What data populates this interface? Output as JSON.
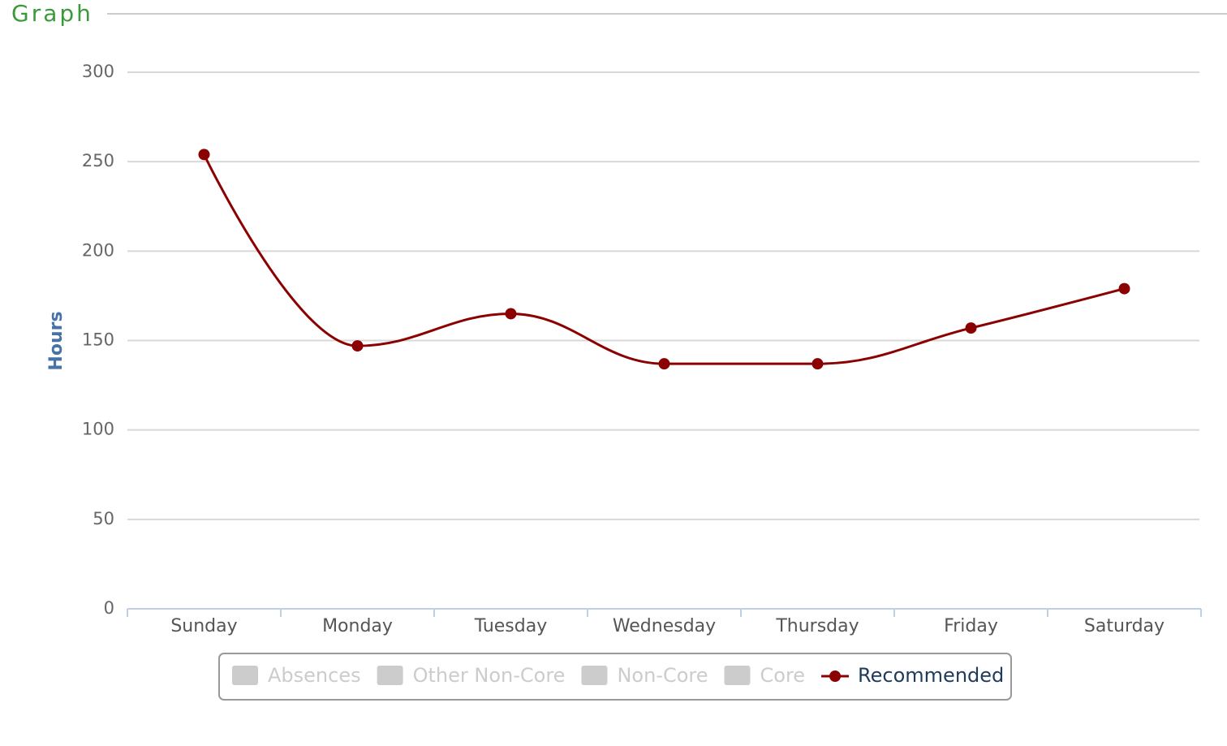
{
  "page_title": "Graph",
  "chart_data": {
    "type": "line",
    "y_axis_label": "Hours",
    "categories": [
      "Sunday",
      "Monday",
      "Tuesday",
      "Wednesday",
      "Thursday",
      "Friday",
      "Saturday"
    ],
    "ylim": [
      0,
      300
    ],
    "yticks": [
      0,
      50,
      100,
      150,
      200,
      250,
      300
    ],
    "grid": true,
    "smooth": true,
    "legend": "bottom",
    "series": [
      {
        "name": "Absences",
        "color": "#cccccc",
        "visible": false
      },
      {
        "name": "Other Non-Core",
        "color": "#cccccc",
        "visible": false
      },
      {
        "name": "Non-Core",
        "color": "#cccccc",
        "visible": false
      },
      {
        "name": "Core",
        "color": "#cccccc",
        "visible": false
      },
      {
        "name": "Recommended",
        "color": "#8b0000",
        "visible": true,
        "values": [
          254,
          147,
          165,
          137,
          137,
          157,
          179
        ]
      }
    ]
  }
}
